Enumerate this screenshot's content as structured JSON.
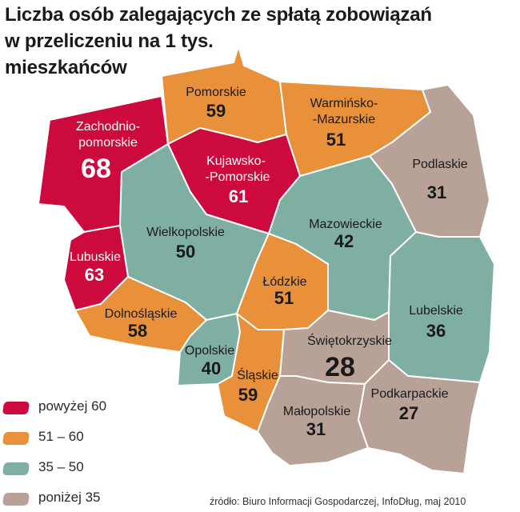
{
  "title": {
    "line1": "Liczba osób zalegających ze spłatą zobowiązań",
    "line2": "w przeliczeniu na 1 tys.",
    "line3": "mieszkańców"
  },
  "colors": {
    "above_60": "#cc0a3e",
    "r51_60": "#e8913a",
    "r35_50": "#7fafa3",
    "below_35": "#b8a197"
  },
  "regions": {
    "zachodniopomorskie": {
      "name1": "Zachodnio-",
      "name2": "pomorskie",
      "value": "68",
      "category": "above_60"
    },
    "pomorskie": {
      "name": "Pomorskie",
      "value": "59",
      "category": "r51_60"
    },
    "warminsko": {
      "name1": "Warmińsko-",
      "name2": "-Mazurskie",
      "value": "51",
      "category": "r51_60"
    },
    "podlaskie": {
      "name": "Podlaskie",
      "value": "31",
      "category": "below_35"
    },
    "kujawsko": {
      "name1": "Kujawsko-",
      "name2": "-Pomorskie",
      "value": "61",
      "category": "above_60"
    },
    "wielkopolskie": {
      "name": "Wielkopolskie",
      "value": "50",
      "category": "r35_50"
    },
    "mazowieckie": {
      "name": "Mazowieckie",
      "value": "42",
      "category": "r35_50"
    },
    "lubuskie": {
      "name": "Lubuskie",
      "value": "63",
      "category": "above_60"
    },
    "lodzkie": {
      "name": "Łódzkie",
      "value": "51",
      "category": "r51_60"
    },
    "lubelskie": {
      "name": "Lubelskie",
      "value": "36",
      "category": "r35_50"
    },
    "dolnoslaskie": {
      "name": "Dolnośląskie",
      "value": "58",
      "category": "r51_60"
    },
    "opolskie": {
      "name": "Opolskie",
      "value": "40",
      "category": "r35_50"
    },
    "slaskie": {
      "name": "Śląskie",
      "value": "59",
      "category": "r51_60"
    },
    "swietokrzyskie": {
      "name": "Świętokrzyskie",
      "value": "28",
      "category": "below_35"
    },
    "malopolskie": {
      "name": "Małopolskie",
      "value": "31",
      "category": "below_35"
    },
    "podkarpackie": {
      "name": "Podkarpackie",
      "value": "27",
      "category": "below_35"
    }
  },
  "legend": [
    {
      "label": "powyżej 60",
      "category": "above_60"
    },
    {
      "label": "51 – 60",
      "category": "r51_60"
    },
    {
      "label": "35 – 50",
      "category": "r35_50"
    },
    {
      "label": "poniżej 35",
      "category": "below_35"
    }
  ],
  "source": "źródło: Biuro Informacji Gospodarczej, InfoDług, maj 2010"
}
